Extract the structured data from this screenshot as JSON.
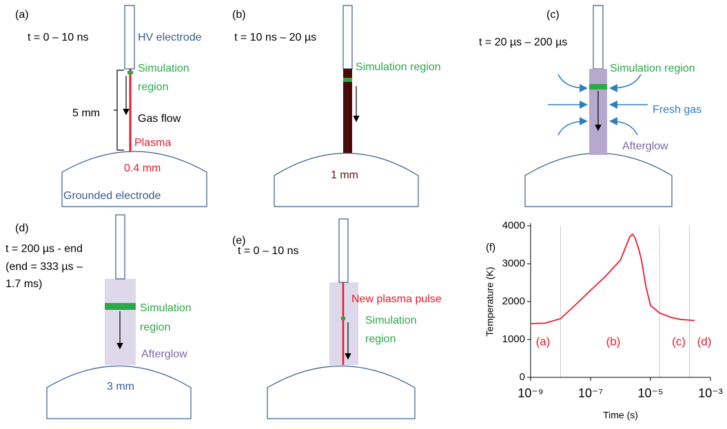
{
  "panels": [
    {
      "label": "(a)",
      "time": [
        "t = 0 – 10 ns"
      ],
      "texts": [
        "HV electrode",
        "Simulation",
        "region",
        "5 mm",
        "Gas flow",
        "Plasma",
        "0.4 mm",
        "Grounded electrode"
      ]
    },
    {
      "label": "(b)",
      "time": [
        "t = 10 ns – 20 µs"
      ],
      "texts": [
        "Simulation region",
        "1 mm"
      ]
    },
    {
      "label": "(c)",
      "time": [
        "t = 20 µs – 200 µs"
      ],
      "texts": [
        "Simulation region",
        "Fresh gas",
        "Afterglow"
      ]
    },
    {
      "label": "(d)",
      "time": [
        "t = 200 µs - end",
        "(end = 333 µs –",
        "1.7 ms)"
      ],
      "texts": [
        "Simulation",
        "region",
        "Afterglow",
        "3 mm"
      ]
    },
    {
      "label": "(e)",
      "time": [
        "t = 0 – 10 ns"
      ],
      "texts": [
        "New plasma pulse",
        "Simulation",
        "region"
      ]
    }
  ],
  "chart": {
    "type": "line",
    "label": "(f)",
    "x_label": "Time (s)",
    "y_label": "Temperature (K)",
    "x_scale": "log",
    "xlim": [
      1e-09,
      0.001
    ],
    "xticks": [
      {
        "value": 1e-09,
        "label": "10⁻⁹"
      },
      {
        "value": 1e-07,
        "label": "10⁻⁷"
      },
      {
        "value": 1e-05,
        "label": "10⁻⁵"
      },
      {
        "value": 0.001,
        "label": "10⁻³"
      }
    ],
    "ylim": [
      0,
      4000
    ],
    "yticks": [
      0,
      1000,
      2000,
      3000,
      4000
    ],
    "x": [
      1e-09,
      3e-09,
      1e-08,
      3e-08,
      1e-07,
      3e-07,
      1e-06,
      2e-06,
      2.5e-06,
      3e-06,
      4e-06,
      5e-06,
      7e-06,
      1e-05,
      2e-05,
      5e-05,
      0.0001,
      0.0003
    ],
    "series": [
      {
        "color": "#e8192c",
        "values": [
          1420,
          1430,
          1550,
          1900,
          2300,
          2650,
          3100,
          3700,
          3780,
          3700,
          3400,
          3100,
          2400,
          1900,
          1700,
          1580,
          1530,
          1500
        ]
      }
    ],
    "phase_lines": [
      1e-08,
      2e-05,
      0.0002
    ],
    "phase_labels": [
      "(a)",
      "(b)",
      "(c)",
      "(d)"
    ],
    "phase_color": "#e8192c"
  }
}
